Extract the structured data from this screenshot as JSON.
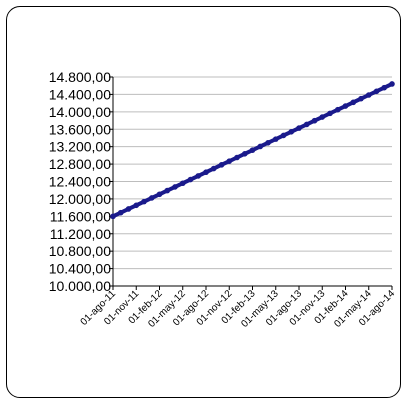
{
  "chart_data": {
    "type": "line",
    "title": "",
    "xlabel": "",
    "ylabel": "",
    "ylim": [
      10000,
      14800
    ],
    "yticks": [
      "10.000,00",
      "10.400,00",
      "10.800,00",
      "11.200,00",
      "11.600,00",
      "12.000,00",
      "12.400,00",
      "12.800,00",
      "13.200,00",
      "13.600,00",
      "14.000,00",
      "14.400,00",
      "14.800,00"
    ],
    "xticks": [
      "01-ago-11",
      "01-nov-11",
      "01-feb-12",
      "01-may-12",
      "01-ago-12",
      "01-nov-12",
      "01-feb-13",
      "01-may-13",
      "01-ago-13",
      "01-nov-13",
      "01-feb-14",
      "01-may-14",
      "01-ago-14"
    ],
    "grid": true,
    "legend": "none",
    "line_color": "#1a1a8c",
    "series": [
      {
        "x_start": "01-ago-11",
        "x_end": "01-ago-14",
        "frequency": "monthly",
        "y_start": 11600,
        "y_end": 14640
      }
    ]
  }
}
